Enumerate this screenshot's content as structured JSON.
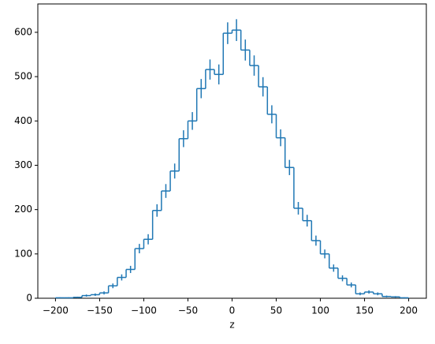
{
  "chart_data": {
    "type": "histogram",
    "xlabel": "z",
    "color": "#1f77b4",
    "bins": [
      -200,
      -190,
      -180,
      -170,
      -160,
      -150,
      -140,
      -130,
      -120,
      -110,
      -100,
      -90,
      -80,
      -70,
      -60,
      -50,
      -40,
      -30,
      -20,
      -10,
      0,
      10,
      20,
      30,
      40,
      50,
      60,
      70,
      80,
      90,
      100,
      110,
      120,
      130,
      140,
      150,
      160,
      170,
      180,
      190,
      200
    ],
    "values": [
      1,
      1,
      2,
      6,
      8,
      12,
      28,
      47,
      65,
      112,
      133,
      198,
      242,
      287,
      360,
      400,
      473,
      516,
      505,
      598,
      605,
      560,
      525,
      477,
      415,
      362,
      295,
      203,
      175,
      130,
      100,
      68,
      45,
      30,
      10,
      14,
      10,
      4,
      3,
      1
    ],
    "errors": [
      1,
      1,
      1.4,
      2.4,
      2.8,
      3.5,
      5.3,
      6.9,
      8.1,
      10.6,
      11.5,
      14.1,
      15.6,
      16.9,
      19,
      20,
      21.7,
      22.7,
      22.5,
      24.5,
      24.6,
      23.7,
      22.9,
      21.8,
      20.4,
      19,
      17.2,
      14.2,
      13.2,
      11.4,
      10,
      8.2,
      6.7,
      5.5,
      3.2,
      3.7,
      3.2,
      2,
      1.7,
      1
    ],
    "xlim": [
      -220,
      220
    ],
    "ylim": [
      0,
      664
    ],
    "xticks": [
      {
        "value": -200,
        "label": "−200"
      },
      {
        "value": -150,
        "label": "−150"
      },
      {
        "value": -100,
        "label": "−100"
      },
      {
        "value": -50,
        "label": "−50"
      },
      0,
      50,
      100,
      150,
      200
    ],
    "yticks": [
      0,
      100,
      200,
      300,
      400,
      500,
      600
    ]
  }
}
